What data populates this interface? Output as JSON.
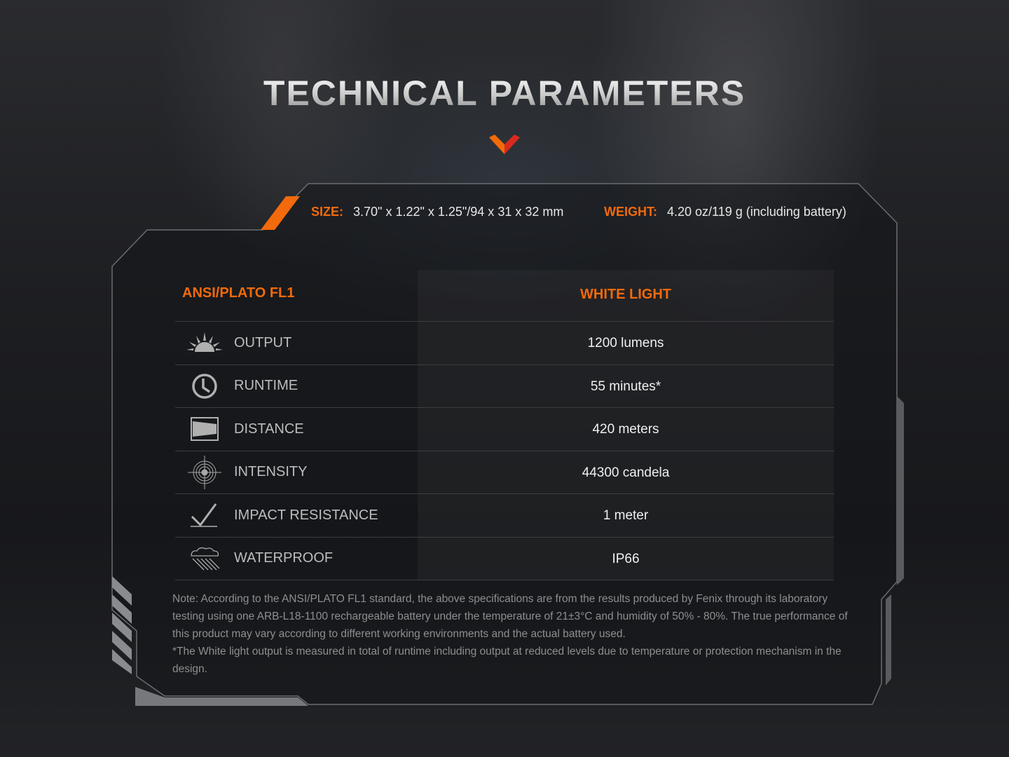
{
  "title": "TECHNICAL PARAMETERS",
  "accent": "#f26a0c",
  "specs": {
    "size_label": "SIZE:",
    "size_value": "3.70\" x 1.22\" x 1.25\"/94 x 31 x 32 mm",
    "weight_label": "WEIGHT:",
    "weight_value": "4.20 oz/119 g (including battery)"
  },
  "table": {
    "header_left": "ANSI/PLATO FL1",
    "header_right": "WHITE LIGHT",
    "rows": [
      {
        "icon": "sunburst-icon",
        "label": "OUTPUT",
        "value": "1200 lumens"
      },
      {
        "icon": "clock-icon",
        "label": "RUNTIME",
        "value": "55 minutes*"
      },
      {
        "icon": "beam-distance-icon",
        "label": "DISTANCE",
        "value": "420 meters"
      },
      {
        "icon": "target-icon",
        "label": "INTENSITY",
        "value": "44300 candela"
      },
      {
        "icon": "impact-check-icon",
        "label": "IMPACT RESISTANCE",
        "value": "1 meter"
      },
      {
        "icon": "rain-cloud-icon",
        "label": "WATERPROOF",
        "value": "IP66"
      }
    ]
  },
  "note": {
    "line1": "Note: According to the ANSI/PLATO FL1 standard, the above specifications are from the results produced by Fenix through its laboratory testing using one ARB-L18-1100 rechargeable battery under the temperature of 21±3°C and humidity of 50% - 80%. The true performance of this product may vary according to different working environments and the actual battery used.",
    "line2": "*The White light output is measured in total of runtime including output at reduced levels due to temperature or protection mechanism in the design."
  }
}
